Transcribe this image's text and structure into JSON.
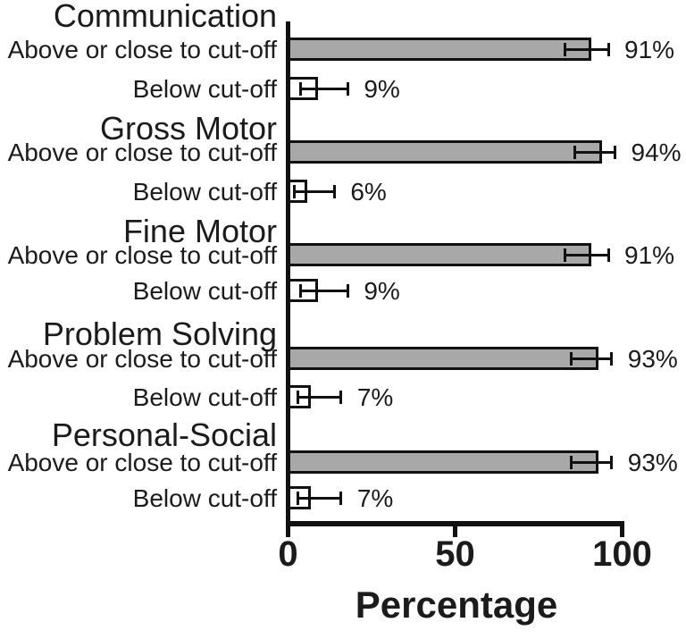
{
  "figure": {
    "background": "#ffffff",
    "text_color": "#1b1b1b"
  },
  "chart_data": {
    "type": "bar",
    "orientation": "horizontal",
    "title": "",
    "xlabel": "Percentage",
    "ylabel": "",
    "xlim": [
      0,
      100
    ],
    "xticks": [
      0,
      50,
      100
    ],
    "xtick_labels": [
      "0",
      "50",
      "100"
    ],
    "grid": false,
    "legend": false,
    "error_bars": true,
    "colors": {
      "bar_fill_above": "#a8a8a8",
      "bar_fill_below": "#ffffff",
      "bar_outline": "#111111",
      "axis": "#111111"
    },
    "groups": [
      {
        "label": "Communication",
        "bars": [
          {
            "label": "Above or close to cut-off",
            "value": 91,
            "value_label": "91%",
            "err_lo": 8,
            "err_hi": 5,
            "style": "above"
          },
          {
            "label": "Below cut-off",
            "value": 9,
            "value_label": "9%",
            "err_lo": 5,
            "err_hi": 9,
            "style": "below"
          }
        ]
      },
      {
        "label": "Gross Motor",
        "bars": [
          {
            "label": "Above or close to cut-off",
            "value": 94,
            "value_label": "94%",
            "err_lo": 8,
            "err_hi": 4,
            "style": "above"
          },
          {
            "label": "Below cut-off",
            "value": 6,
            "value_label": "6%",
            "err_lo": 4,
            "err_hi": 8,
            "style": "below"
          }
        ]
      },
      {
        "label": "Fine Motor",
        "bars": [
          {
            "label": "Above or close to cut-off",
            "value": 91,
            "value_label": "91%",
            "err_lo": 8,
            "err_hi": 5,
            "style": "above"
          },
          {
            "label": "Below cut-off",
            "value": 9,
            "value_label": "9%",
            "err_lo": 5,
            "err_hi": 9,
            "style": "below"
          }
        ]
      },
      {
        "label": "Problem Solving",
        "bars": [
          {
            "label": "Above or close to cut-off",
            "value": 93,
            "value_label": "93%",
            "err_lo": 8,
            "err_hi": 4,
            "style": "above"
          },
          {
            "label": "Below cut-off",
            "value": 7,
            "value_label": "7%",
            "err_lo": 4,
            "err_hi": 9,
            "style": "below"
          }
        ]
      },
      {
        "label": "Personal-Social",
        "bars": [
          {
            "label": "Above or close to cut-off",
            "value": 93,
            "value_label": "93%",
            "err_lo": 8,
            "err_hi": 4,
            "style": "above"
          },
          {
            "label": "Below cut-off",
            "value": 7,
            "value_label": "7%",
            "err_lo": 4,
            "err_hi": 9,
            "style": "below"
          }
        ]
      }
    ]
  }
}
